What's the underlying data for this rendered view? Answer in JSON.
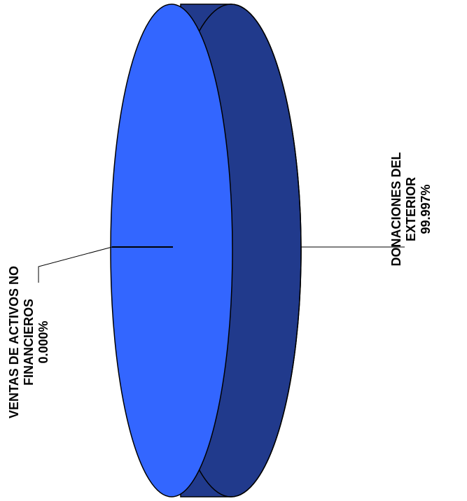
{
  "chart_data": {
    "type": "pie",
    "title": "",
    "slices": [
      {
        "label": "VENTAS DE ACTIVOS NO FINANCIEROS",
        "value": 0.0,
        "display": "0.000%",
        "lines": [
          "VENTAS DE ACTIVOS NO",
          "FINANCIEROS",
          "0.000%"
        ]
      },
      {
        "label": "DONACIONES DEL EXTERIOR",
        "value": 99.997,
        "display": "99.997%",
        "lines": [
          "DONACIONES DEL",
          "EXTERIOR",
          "99.997%"
        ]
      }
    ],
    "colors": {
      "face": "#3366ff",
      "side": "#213a8c",
      "outline": "#000000",
      "leader": "#000000"
    },
    "style": "3d-pie-rotated"
  }
}
